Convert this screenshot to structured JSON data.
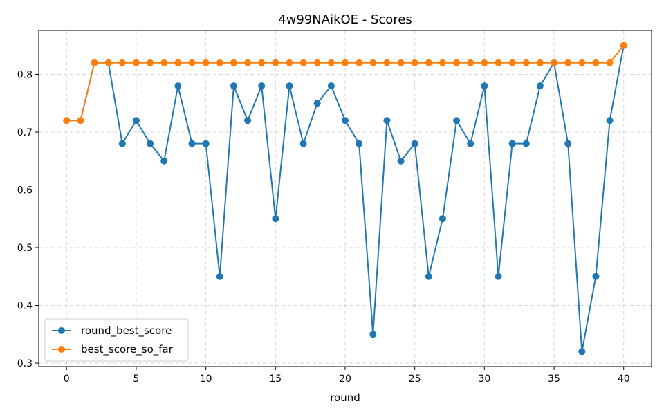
{
  "chart_data": {
    "type": "line",
    "title": "4w99NAikOE - Scores",
    "xlabel": "round",
    "ylabel": "",
    "xlim": [
      -2,
      42
    ],
    "ylim": [
      0.294,
      0.876
    ],
    "xticks": [
      0,
      5,
      10,
      15,
      20,
      25,
      30,
      35,
      40
    ],
    "yticks": [
      0.3,
      0.4,
      0.5,
      0.6,
      0.7,
      0.8
    ],
    "xtick_labels": [
      "0",
      "5",
      "10",
      "15",
      "20",
      "25",
      "30",
      "35",
      "40"
    ],
    "ytick_labels": [
      "0.3",
      "0.4",
      "0.5",
      "0.6",
      "0.7",
      "0.8"
    ],
    "grid": true,
    "legend_position": "lower-left",
    "x": [
      0,
      1,
      2,
      3,
      4,
      5,
      6,
      7,
      8,
      9,
      10,
      11,
      12,
      13,
      14,
      15,
      16,
      17,
      18,
      19,
      20,
      21,
      22,
      23,
      24,
      25,
      26,
      27,
      28,
      29,
      30,
      31,
      32,
      33,
      34,
      35,
      36,
      37,
      38,
      39,
      40
    ],
    "series": [
      {
        "name": "round_best_score",
        "color": "#1f77b4",
        "values": [
          0.72,
          0.72,
          0.82,
          0.82,
          0.68,
          0.72,
          0.68,
          0.65,
          0.78,
          0.68,
          0.68,
          0.45,
          0.78,
          0.72,
          0.78,
          0.55,
          0.78,
          0.68,
          0.75,
          0.78,
          0.72,
          0.68,
          0.35,
          0.72,
          0.65,
          0.68,
          0.45,
          0.55,
          0.72,
          0.68,
          0.78,
          0.45,
          0.68,
          0.68,
          0.78,
          0.82,
          0.68,
          0.32,
          0.45,
          0.72,
          0.85
        ]
      },
      {
        "name": "best_score_so_far",
        "color": "#ff7f0e",
        "values": [
          0.72,
          0.72,
          0.82,
          0.82,
          0.82,
          0.82,
          0.82,
          0.82,
          0.82,
          0.82,
          0.82,
          0.82,
          0.82,
          0.82,
          0.82,
          0.82,
          0.82,
          0.82,
          0.82,
          0.82,
          0.82,
          0.82,
          0.82,
          0.82,
          0.82,
          0.82,
          0.82,
          0.82,
          0.82,
          0.82,
          0.82,
          0.82,
          0.82,
          0.82,
          0.82,
          0.82,
          0.82,
          0.82,
          0.82,
          0.82,
          0.85
        ]
      }
    ]
  }
}
